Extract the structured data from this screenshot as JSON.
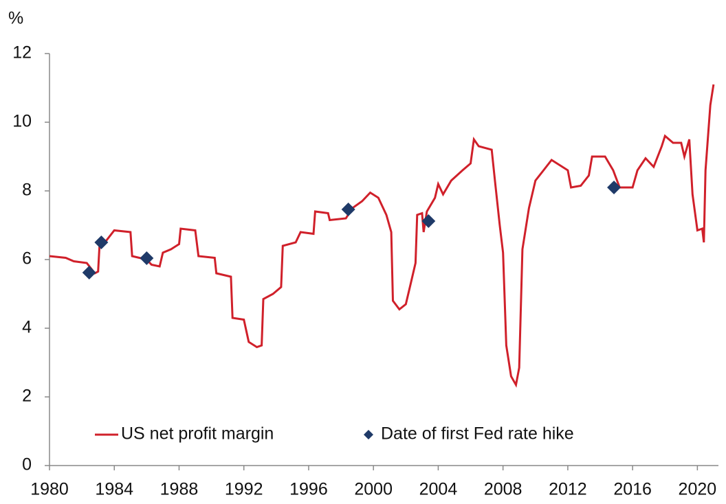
{
  "chart_data": {
    "type": "line",
    "y_label": "%",
    "xlim": [
      1980,
      2021.3
    ],
    "xticks": [
      1980,
      1984,
      1988,
      1992,
      1996,
      2000,
      2004,
      2008,
      2012,
      2016,
      2020
    ],
    "ylim": [
      0,
      12
    ],
    "yticks": [
      0,
      2,
      4,
      6,
      8,
      10,
      12
    ],
    "grid": false,
    "legend": "bottom",
    "series": [
      {
        "name": "US net profit margin",
        "color": "#d0202a",
        "type": "line",
        "x": [
          1980.0,
          1981.0,
          1981.5,
          1982.3,
          1982.8,
          1983.0,
          1983.1,
          1983.5,
          1984.0,
          1985.0,
          1985.1,
          1986.0,
          1986.3,
          1986.8,
          1987.0,
          1987.5,
          1988.0,
          1988.1,
          1989.0,
          1989.2,
          1990.2,
          1990.3,
          1991.2,
          1991.3,
          1992.0,
          1992.3,
          1992.8,
          1993.1,
          1993.2,
          1993.8,
          1994.3,
          1994.4,
          1995.2,
          1995.5,
          1996.3,
          1996.4,
          1997.2,
          1997.3,
          1998.3,
          1998.7,
          1999.3,
          1999.8,
          2000.3,
          2000.8,
          2001.1,
          2001.2,
          2001.6,
          2002.0,
          2002.3,
          2002.6,
          2002.7,
          2003.0,
          2003.1,
          2003.3,
          2003.8,
          2004.0,
          2004.3,
          2004.8,
          2005.5,
          2006.0,
          2006.2,
          2006.5,
          2007.3,
          2007.5,
          2007.8,
          2008.0,
          2008.2,
          2008.5,
          2008.8,
          2009.0,
          2009.2,
          2009.6,
          2010.0,
          2010.5,
          2011.0,
          2011.5,
          2012.0,
          2012.2,
          2012.8,
          2013.3,
          2013.5,
          2014.3,
          2014.8,
          2015.2,
          2016.0,
          2016.3,
          2016.8,
          2017.3,
          2017.8,
          2018.0,
          2018.5,
          2019.0,
          2019.2,
          2019.5,
          2019.7,
          2020.0,
          2020.3,
          2020.4,
          2020.5,
          2020.8,
          2021.0
        ],
        "values": [
          6.1,
          6.05,
          5.95,
          5.9,
          5.6,
          5.65,
          6.5,
          6.55,
          6.85,
          6.8,
          6.1,
          6.0,
          5.85,
          5.8,
          6.2,
          6.3,
          6.45,
          6.9,
          6.85,
          6.1,
          6.05,
          5.6,
          5.5,
          4.3,
          4.25,
          3.6,
          3.45,
          3.5,
          4.85,
          5.0,
          5.2,
          6.4,
          6.5,
          6.8,
          6.75,
          7.4,
          7.35,
          7.15,
          7.2,
          7.5,
          7.7,
          7.95,
          7.8,
          7.3,
          6.8,
          4.8,
          4.55,
          4.7,
          5.3,
          5.9,
          7.3,
          7.35,
          6.8,
          7.4,
          7.8,
          8.2,
          7.9,
          8.3,
          8.6,
          8.8,
          9.5,
          9.3,
          9.2,
          8.3,
          7.0,
          6.2,
          3.5,
          2.6,
          2.35,
          2.85,
          6.3,
          7.5,
          8.3,
          8.6,
          8.9,
          8.75,
          8.6,
          8.1,
          8.15,
          8.45,
          9.0,
          9.0,
          8.6,
          8.1,
          8.1,
          8.6,
          8.95,
          8.7,
          9.3,
          9.6,
          9.4,
          9.4,
          9.0,
          9.5,
          7.9,
          6.85,
          6.9,
          6.5,
          8.6,
          10.5,
          11.1
        ]
      },
      {
        "name": "Date of first Fed rate hike",
        "color": "#1f3a68",
        "type": "scatter",
        "x": [
          1982.45,
          1983.2,
          1986.0,
          1998.45,
          2003.4,
          2014.85
        ],
        "values": [
          5.62,
          6.5,
          6.04,
          7.46,
          7.12,
          8.1
        ]
      }
    ]
  }
}
